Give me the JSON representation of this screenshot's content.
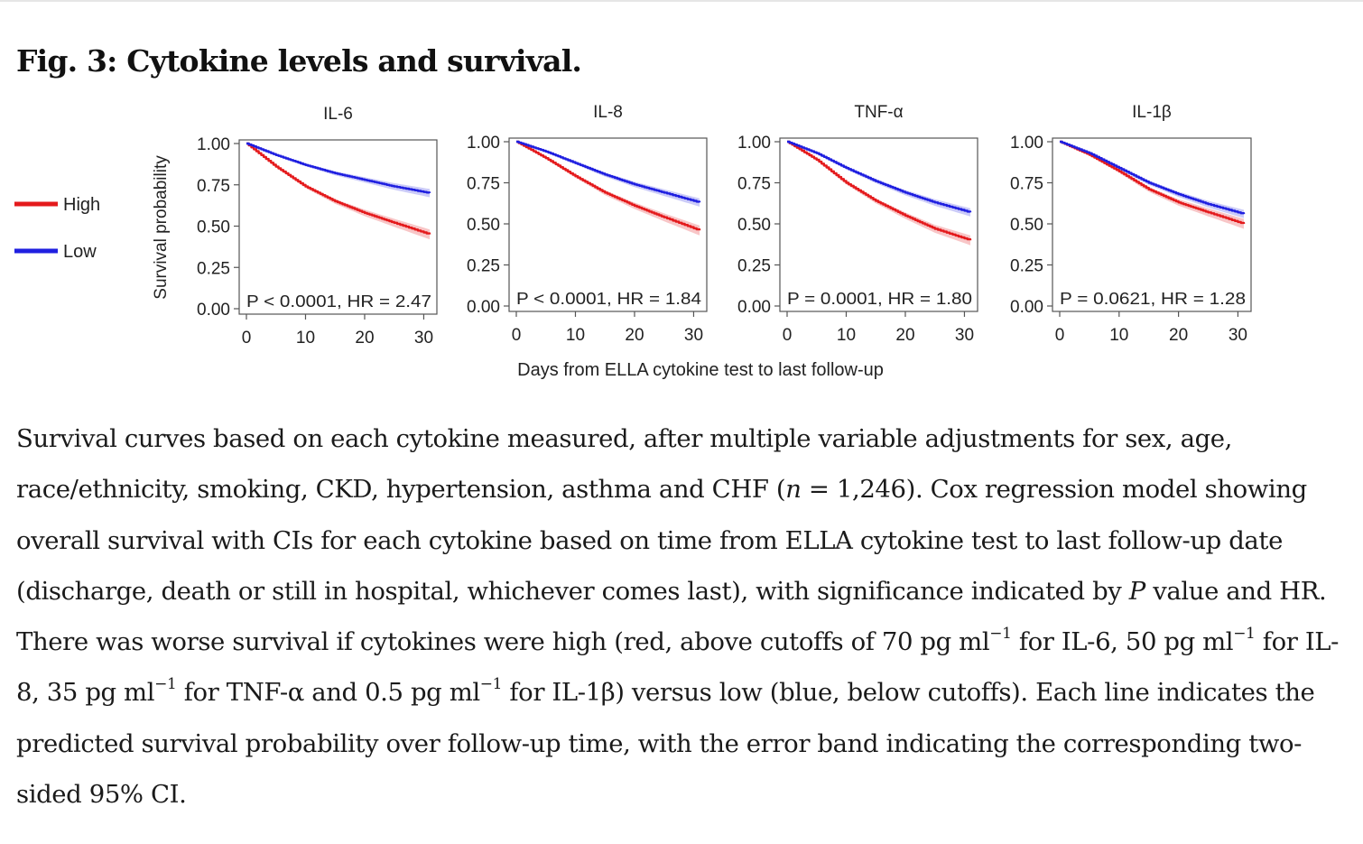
{
  "figure": {
    "title": "Fig. 3: Cytokine levels and survival."
  },
  "legend": [
    {
      "label": "High",
      "color": "#e41a1c"
    },
    {
      "label": "Low",
      "color": "#1f1fe0"
    }
  ],
  "colors": {
    "high_line": "#e41a1c",
    "high_band": "#f6b3b4",
    "low_line": "#1f1fe0",
    "low_band": "#b9b9f5",
    "axis": "#555555"
  },
  "shared_ylabel": "Survival probability",
  "shared_xlabel": "Days from ELLA cytokine test to last follow-up",
  "chart_data": [
    {
      "type": "line",
      "title": "IL-6",
      "annotation": "P < 0.0001, HR = 2.47",
      "xlim": [
        0,
        31
      ],
      "ylim": [
        0,
        1
      ],
      "xticks": [
        "0",
        "10",
        "20",
        "30"
      ],
      "yticks": [
        "0.00",
        "0.25",
        "0.50",
        "0.75",
        "1.00"
      ],
      "x": [
        0,
        5,
        10,
        15,
        20,
        25,
        31
      ],
      "series": [
        {
          "name": "High",
          "values": [
            1.0,
            0.86,
            0.74,
            0.65,
            0.58,
            0.52,
            0.45
          ],
          "band": 0.03
        },
        {
          "name": "Low",
          "values": [
            1.0,
            0.93,
            0.87,
            0.82,
            0.78,
            0.74,
            0.7
          ],
          "band": 0.025
        }
      ]
    },
    {
      "type": "line",
      "title": "IL-8",
      "annotation": "P < 0.0001, HR = 1.84",
      "xlim": [
        0,
        31
      ],
      "ylim": [
        0,
        1
      ],
      "xticks": [
        "0",
        "10",
        "20",
        "30"
      ],
      "yticks": [
        "0.00",
        "0.25",
        "0.50",
        "0.75",
        "1.00"
      ],
      "x": [
        0,
        5,
        10,
        15,
        20,
        25,
        31
      ],
      "series": [
        {
          "name": "High",
          "values": [
            1.0,
            0.9,
            0.79,
            0.69,
            0.61,
            0.54,
            0.46
          ],
          "band": 0.03
        },
        {
          "name": "Low",
          "values": [
            1.0,
            0.94,
            0.87,
            0.8,
            0.74,
            0.69,
            0.63
          ],
          "band": 0.025
        }
      ]
    },
    {
      "type": "line",
      "title": "TNF-α",
      "annotation": "P = 0.0001, HR = 1.80",
      "xlim": [
        0,
        31
      ],
      "ylim": [
        0,
        1
      ],
      "xticks": [
        "0",
        "10",
        "20",
        "30"
      ],
      "yticks": [
        "0.00",
        "0.25",
        "0.50",
        "0.75",
        "1.00"
      ],
      "x": [
        0,
        5,
        10,
        15,
        20,
        25,
        31
      ],
      "series": [
        {
          "name": "High",
          "values": [
            1.0,
            0.89,
            0.75,
            0.64,
            0.55,
            0.47,
            0.4
          ],
          "band": 0.03
        },
        {
          "name": "Low",
          "values": [
            1.0,
            0.93,
            0.84,
            0.76,
            0.69,
            0.63,
            0.57
          ],
          "band": 0.025
        }
      ]
    },
    {
      "type": "line",
      "title": "IL-1β",
      "annotation": "P = 0.0621, HR = 1.28",
      "xlim": [
        0,
        31
      ],
      "ylim": [
        0,
        1
      ],
      "xticks": [
        "0",
        "10",
        "20",
        "30"
      ],
      "yticks": [
        "0.00",
        "0.25",
        "0.50",
        "0.75",
        "1.00"
      ],
      "x": [
        0,
        5,
        10,
        15,
        20,
        25,
        31
      ],
      "series": [
        {
          "name": "High",
          "values": [
            1.0,
            0.92,
            0.82,
            0.71,
            0.63,
            0.57,
            0.5
          ],
          "band": 0.03
        },
        {
          "name": "Low",
          "values": [
            1.0,
            0.93,
            0.84,
            0.75,
            0.68,
            0.62,
            0.56
          ],
          "band": 0.025
        }
      ]
    }
  ],
  "caption": {
    "segments": [
      {
        "t": "Survival curves based on each cytokine measured, after multiple variable adjustments for sex, age, race/ethnicity, smoking, CKD, hypertension, asthma and CHF ("
      },
      {
        "t": "n",
        "i": true
      },
      {
        "t": " = 1,246). Cox regression model showing overall survival with CIs for each cytokine based on time from ELLA cytokine test to last follow-up date (discharge, death or still in hospital, whichever comes last), with significance indicated by "
      },
      {
        "t": "P",
        "i": true
      },
      {
        "t": " value and HR. There was worse survival if cytokines were high (red, above cutoffs of 70 pg ml"
      },
      {
        "t": "−1",
        "sup": true
      },
      {
        "t": " for IL-6, 50 pg ml"
      },
      {
        "t": "−1",
        "sup": true
      },
      {
        "t": " for IL-8, 35 pg ml"
      },
      {
        "t": "−1",
        "sup": true
      },
      {
        "t": " for TNF-α and 0.5 pg ml"
      },
      {
        "t": "−1",
        "sup": true
      },
      {
        "t": " for IL-1β) versus low (blue, below cutoffs). Each line indicates the predicted survival probability over follow-up time, with the error band indicating the corresponding two-sided 95% CI."
      }
    ]
  }
}
